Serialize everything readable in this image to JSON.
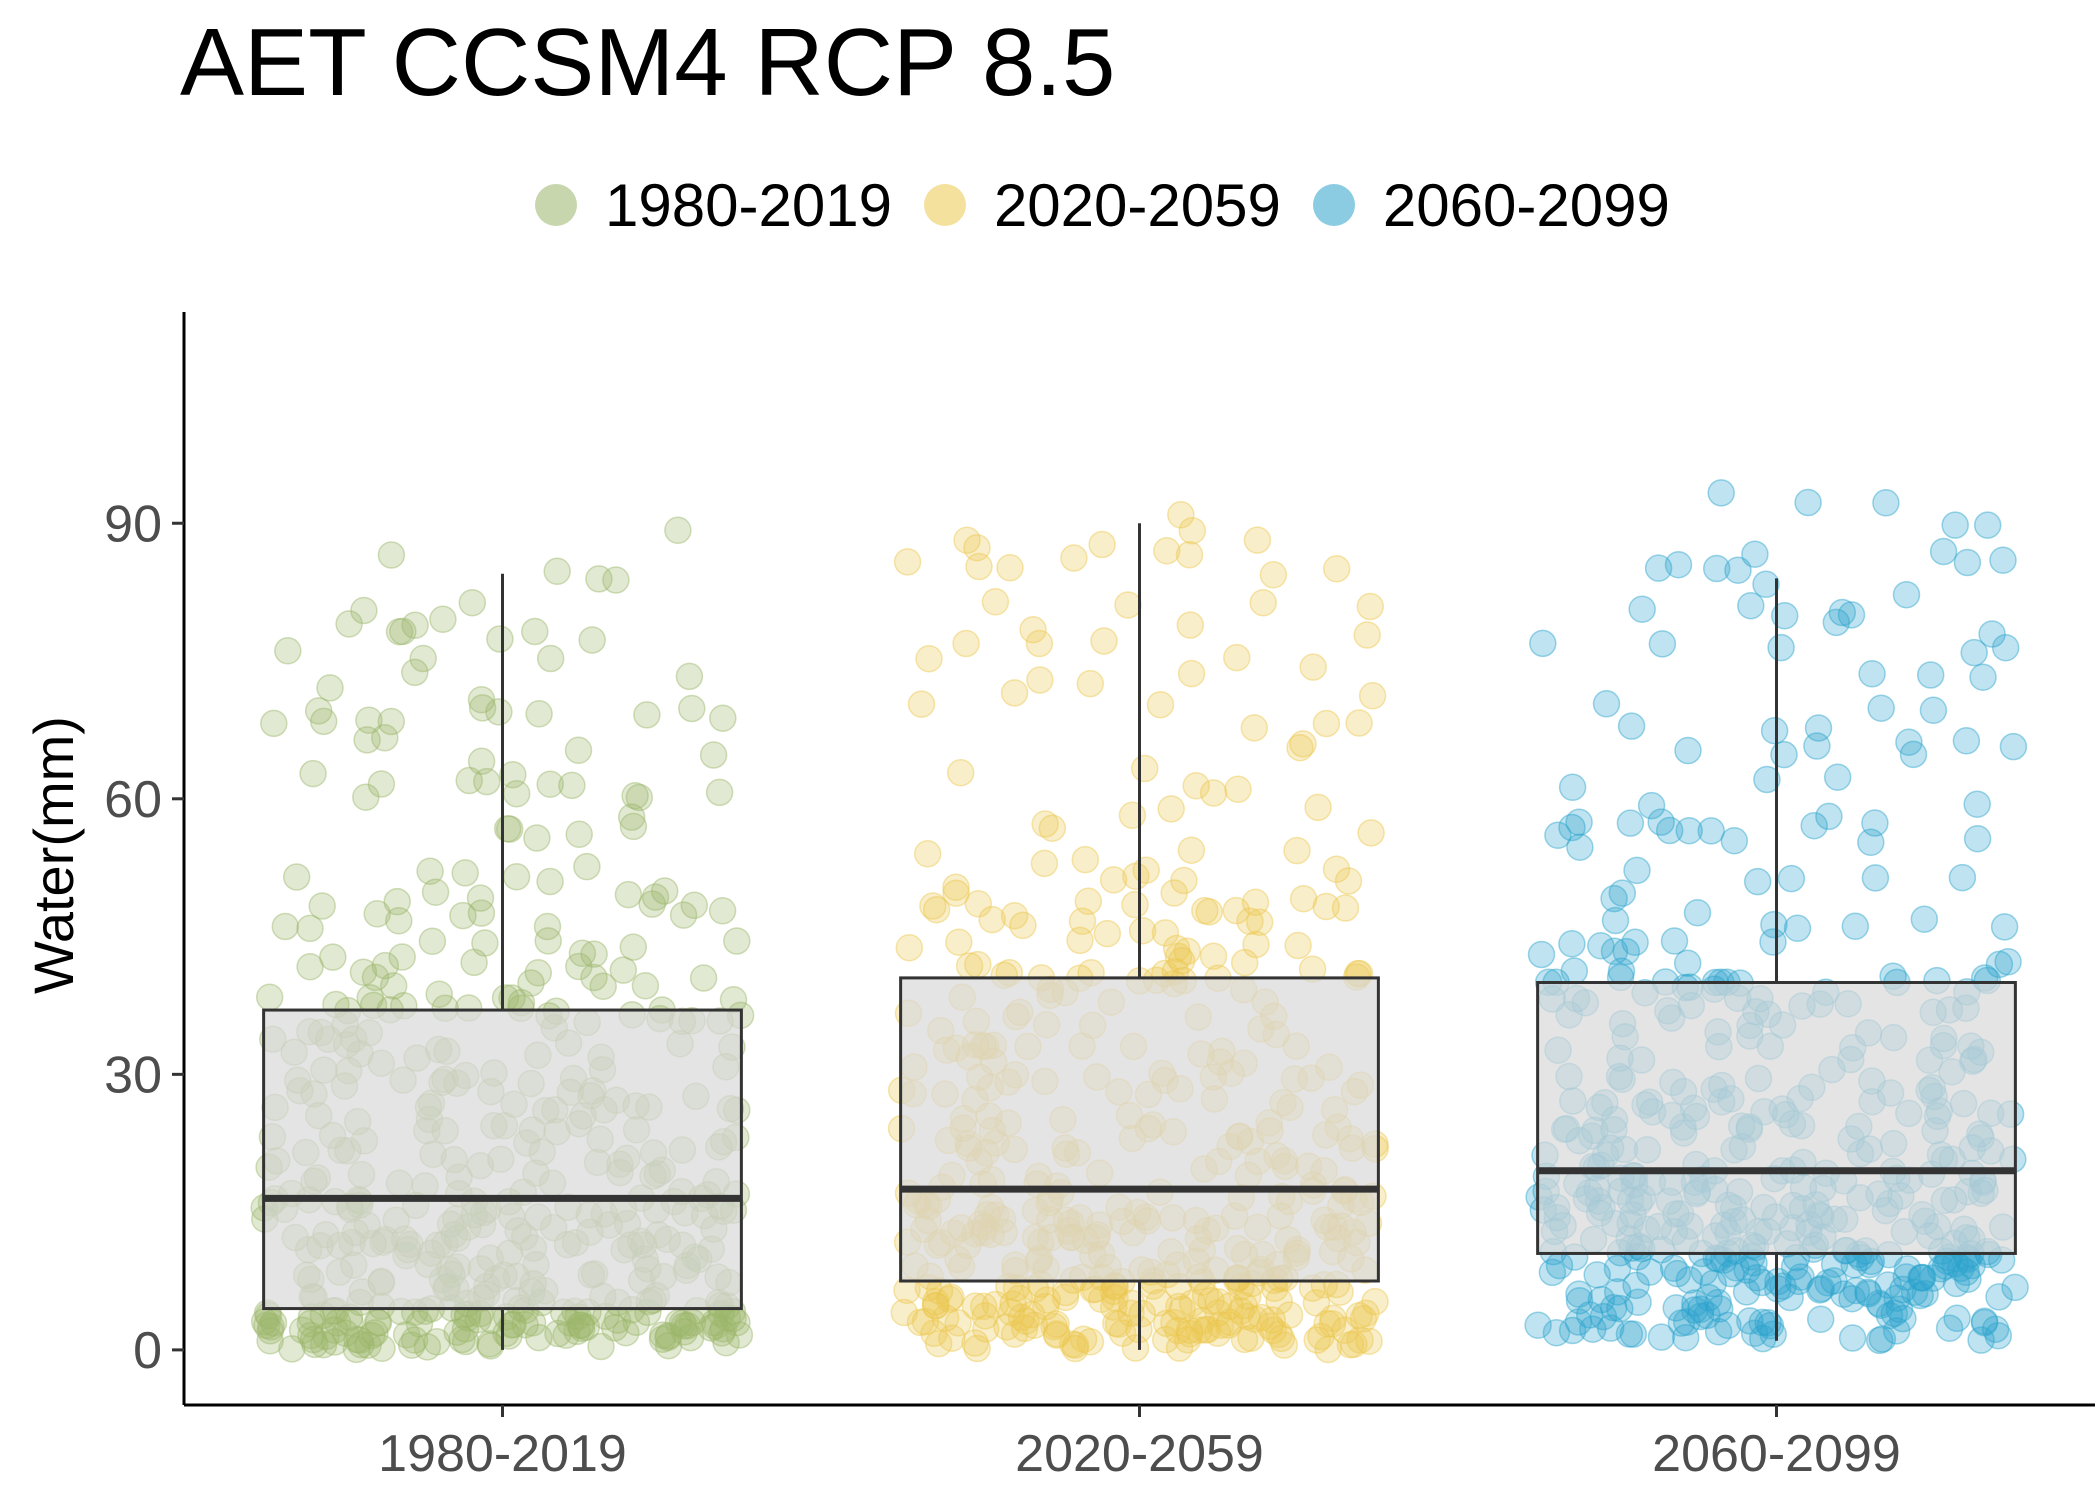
{
  "chart_data": {
    "type": "box",
    "title": "AET CCSM4 RCP 8.5",
    "xlabel": "",
    "ylabel": "Water(mm)",
    "ylim": [
      -6,
      113
    ],
    "yticks": [
      0,
      30,
      60,
      90
    ],
    "grid": false,
    "legend_position": "top",
    "categories": [
      "1980-2019",
      "2020-2059",
      "2060-2099"
    ],
    "series": [
      {
        "name": "1980-2019",
        "color": "#9bb56a",
        "box": {
          "min": 0,
          "q1": 4.5,
          "median": 16.5,
          "q3": 37,
          "max": 84.5
        },
        "points_range": [
          0,
          90
        ]
      },
      {
        "name": "2020-2059",
        "color": "#ebc84e",
        "box": {
          "min": 0,
          "q1": 7.5,
          "median": 17.5,
          "q3": 40.5,
          "max": 90
        },
        "points_range": [
          0,
          91
        ]
      },
      {
        "name": "2060-2099",
        "color": "#2ba3cc",
        "box": {
          "min": 1,
          "q1": 10.5,
          "median": 19.5,
          "q3": 40,
          "max": 84
        },
        "points_range": [
          1,
          94
        ]
      }
    ]
  }
}
